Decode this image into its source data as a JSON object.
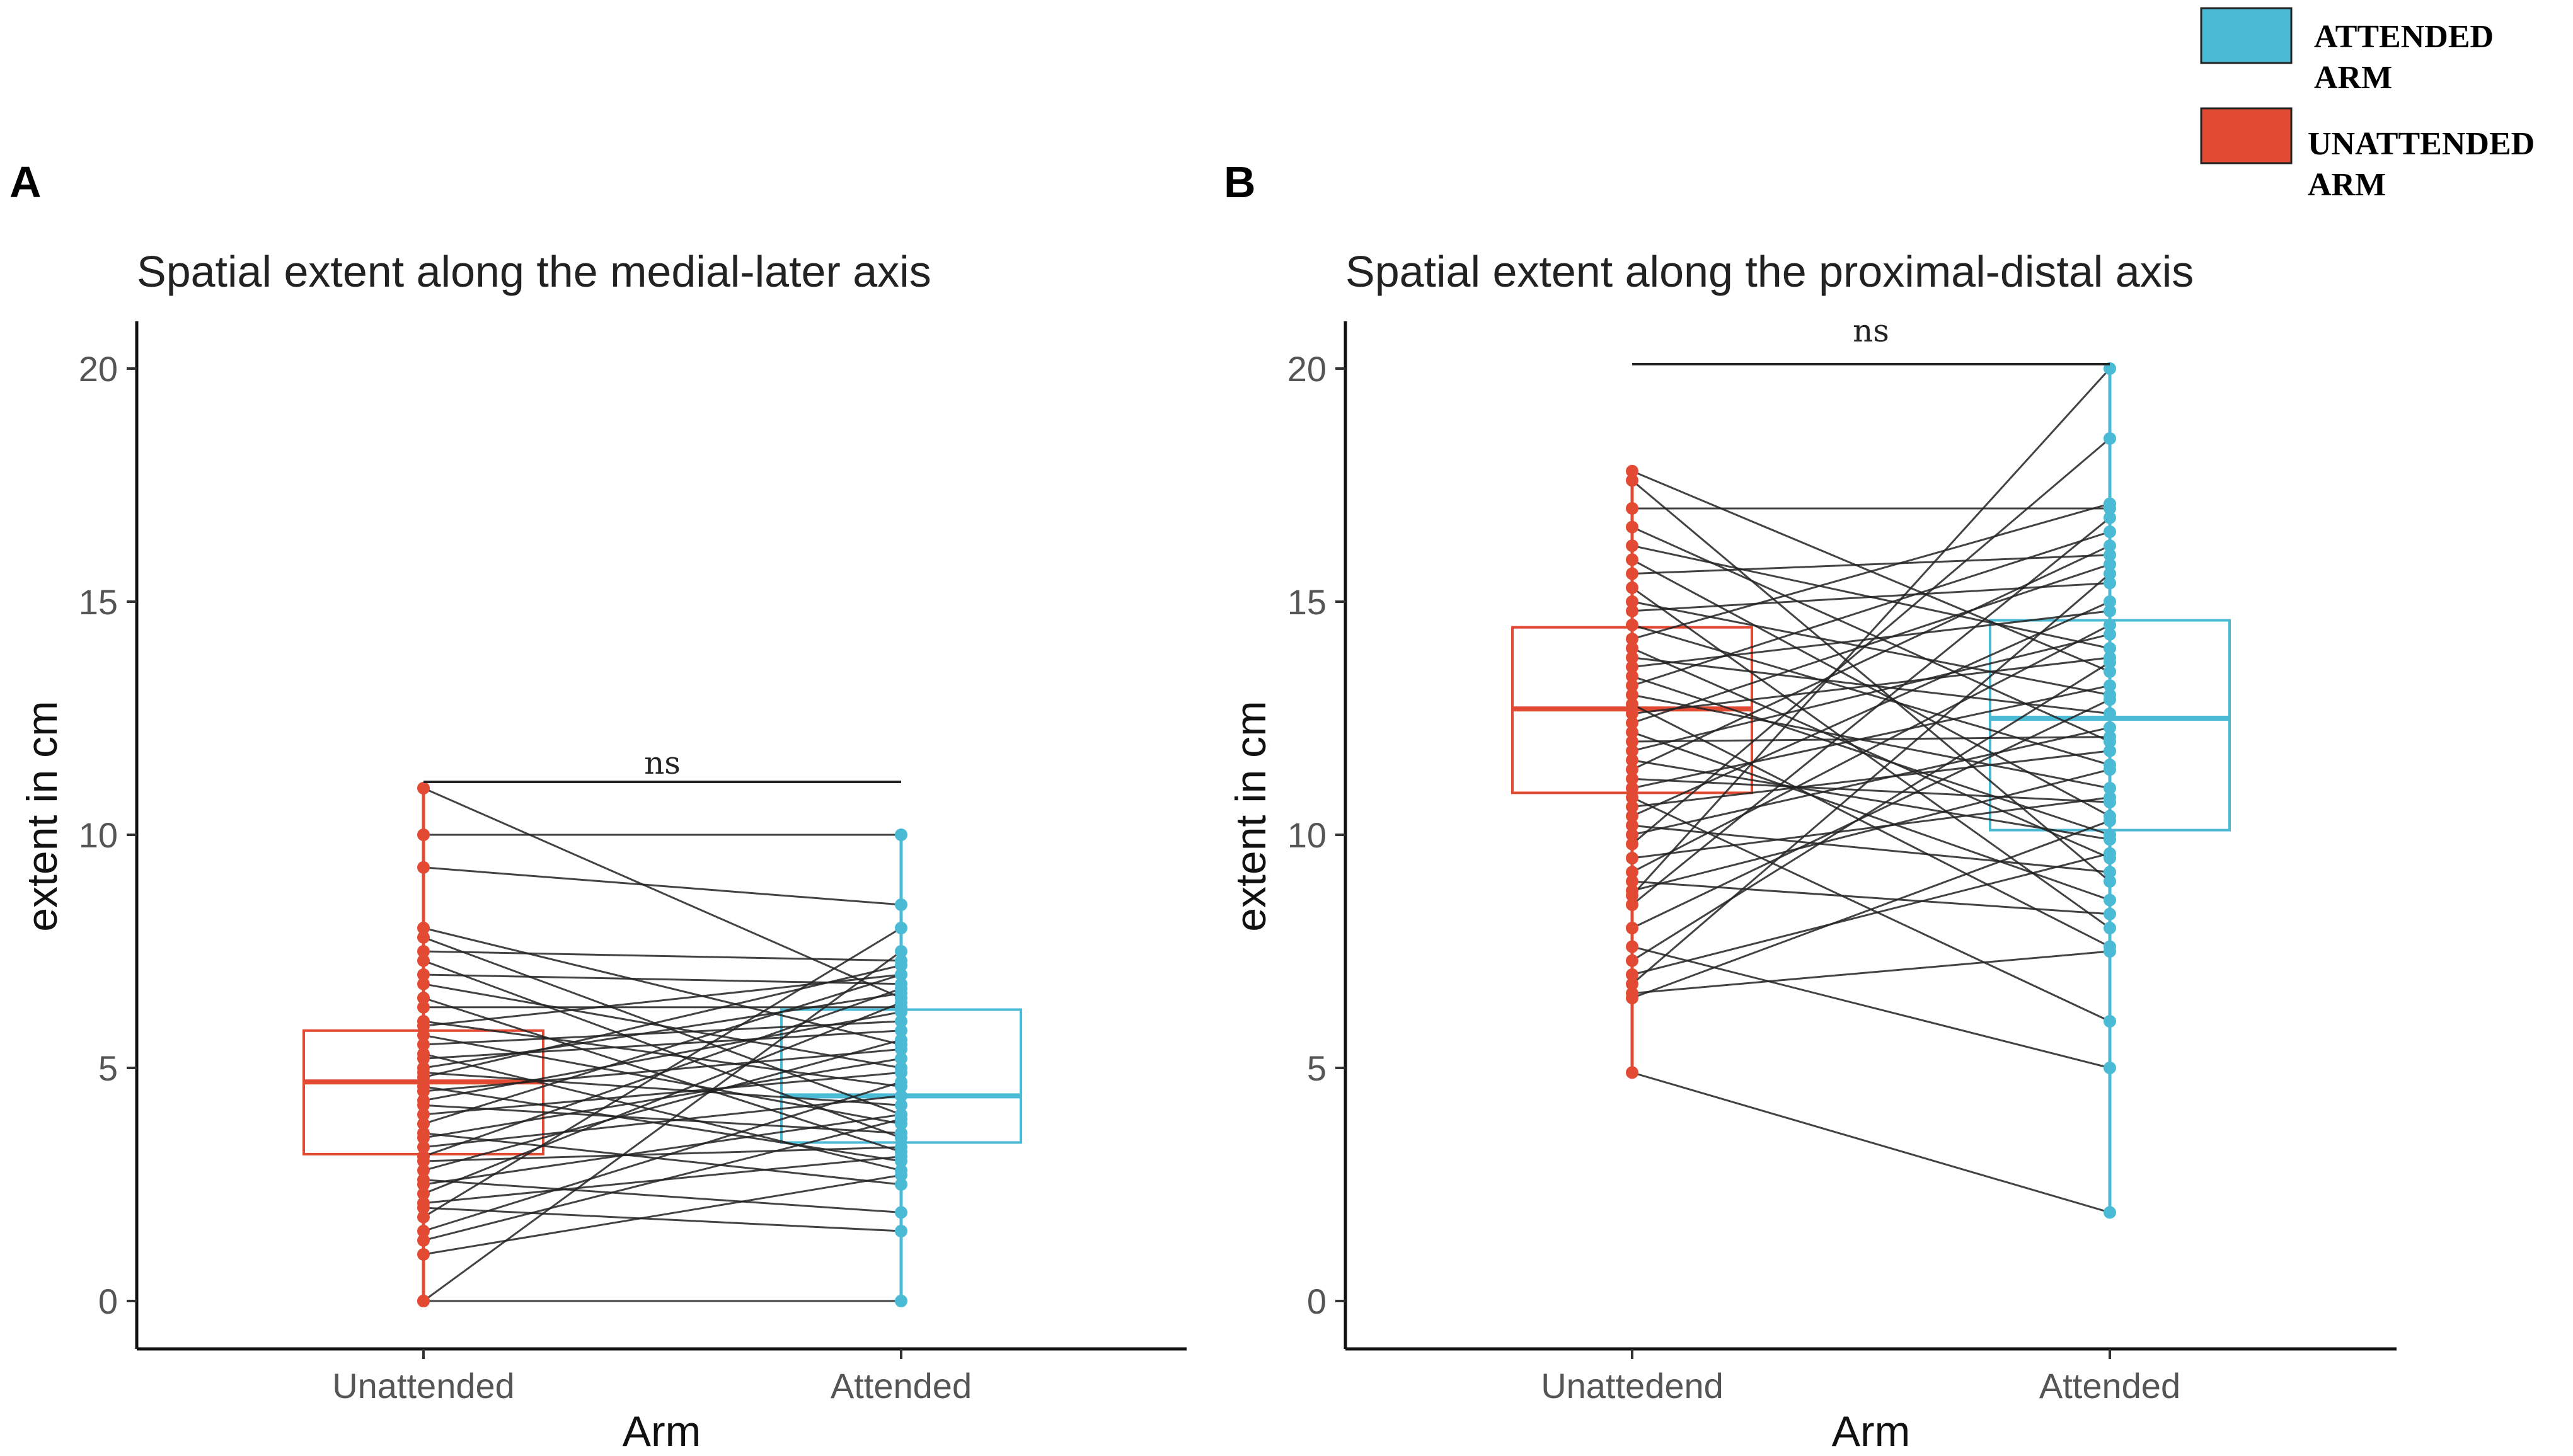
{
  "chart_data": [
    {
      "type": "box",
      "panel_label": "A",
      "title": "Spatial extent along the medial-later axis",
      "xlabel": "Arm",
      "ylabel": "extent in cm",
      "categories": [
        "Unattended",
        "Attended"
      ],
      "ylim": [
        0,
        20
      ],
      "yticks": [
        0,
        5,
        10,
        15,
        20
      ],
      "significance": "ns",
      "grid": false,
      "boxes": [
        {
          "group": "Unattended",
          "q1": 3.15,
          "median": 4.7,
          "q3": 5.8,
          "color": "#e24a33"
        },
        {
          "group": "Attended",
          "q1": 3.4,
          "median": 4.4,
          "q3": 6.25,
          "color": "#4bbad5"
        }
      ],
      "pairs": [
        [
          11.0,
          6.5
        ],
        [
          10.0,
          10.0
        ],
        [
          9.3,
          8.5
        ],
        [
          8.0,
          5.5
        ],
        [
          7.8,
          4.0
        ],
        [
          7.5,
          7.3
        ],
        [
          7.3,
          3.5
        ],
        [
          7.0,
          6.8
        ],
        [
          6.8,
          5.0
        ],
        [
          6.5,
          3.2
        ],
        [
          6.3,
          6.3
        ],
        [
          6.0,
          4.6
        ],
        [
          5.9,
          7.0
        ],
        [
          5.7,
          3.8
        ],
        [
          5.5,
          6.0
        ],
        [
          5.3,
          2.8
        ],
        [
          5.2,
          5.8
        ],
        [
          5.0,
          6.6
        ],
        [
          4.9,
          4.2
        ],
        [
          4.8,
          7.2
        ],
        [
          4.6,
          3.0
        ],
        [
          4.5,
          5.4
        ],
        [
          4.3,
          6.2
        ],
        [
          4.2,
          3.6
        ],
        [
          4.0,
          4.9
        ],
        [
          3.8,
          7.0
        ],
        [
          3.6,
          2.5
        ],
        [
          3.5,
          5.2
        ],
        [
          3.3,
          4.4
        ],
        [
          3.1,
          6.7
        ],
        [
          3.0,
          3.3
        ],
        [
          2.8,
          5.6
        ],
        [
          2.6,
          1.9
        ],
        [
          2.5,
          4.0
        ],
        [
          2.3,
          6.4
        ],
        [
          2.1,
          3.1
        ],
        [
          2.0,
          1.5
        ],
        [
          1.8,
          8.0
        ],
        [
          1.5,
          4.7
        ],
        [
          1.3,
          3.9
        ],
        [
          1.0,
          2.7
        ],
        [
          0.0,
          0.0
        ],
        [
          0.0,
          7.5
        ]
      ]
    },
    {
      "type": "box",
      "panel_label": "B",
      "title": "Spatial extent along the proximal-distal axis",
      "xlabel": "Arm",
      "ylabel": "extent in cm",
      "categories": [
        "Unattedend",
        "Attended"
      ],
      "ylim": [
        0,
        20
      ],
      "yticks": [
        0,
        5,
        10,
        15,
        20
      ],
      "significance": "ns",
      "grid": false,
      "boxes": [
        {
          "group": "Unattedend",
          "q1": 10.9,
          "median": 12.7,
          "q3": 14.45,
          "color": "#e24a33"
        },
        {
          "group": "Attended",
          "q1": 10.1,
          "median": 12.5,
          "q3": 14.6,
          "color": "#4bbad5"
        }
      ],
      "pairs": [
        [
          17.8,
          13.5
        ],
        [
          17.6,
          9.0
        ],
        [
          17.0,
          17.0
        ],
        [
          16.6,
          12.0
        ],
        [
          16.2,
          14.0
        ],
        [
          15.9,
          10.4
        ],
        [
          15.6,
          16.0
        ],
        [
          15.3,
          8.0
        ],
        [
          15.0,
          13.0
        ],
        [
          14.8,
          15.4
        ],
        [
          14.5,
          11.5
        ],
        [
          14.2,
          17.1
        ],
        [
          14.0,
          9.5
        ],
        [
          13.8,
          12.6
        ],
        [
          13.6,
          14.8
        ],
        [
          13.4,
          10.0
        ],
        [
          13.2,
          16.5
        ],
        [
          13.0,
          11.0
        ],
        [
          12.8,
          7.6
        ],
        [
          12.6,
          13.8
        ],
        [
          12.4,
          15.8
        ],
        [
          12.2,
          8.6
        ],
        [
          12.0,
          12.1
        ],
        [
          11.8,
          14.3
        ],
        [
          11.6,
          9.9
        ],
        [
          11.4,
          16.2
        ],
        [
          11.2,
          10.7
        ],
        [
          11.0,
          13.2
        ],
        [
          10.8,
          6.0
        ],
        [
          10.6,
          11.8
        ],
        [
          10.4,
          15.0
        ],
        [
          10.2,
          9.2
        ],
        [
          10.0,
          12.3
        ],
        [
          9.8,
          18.5
        ],
        [
          9.5,
          10.8
        ],
        [
          9.2,
          14.5
        ],
        [
          9.0,
          8.3
        ],
        [
          8.8,
          11.4
        ],
        [
          8.5,
          16.8
        ],
        [
          8.0,
          12.9
        ],
        [
          7.6,
          5.0
        ],
        [
          7.3,
          13.7
        ],
        [
          7.0,
          9.6
        ],
        [
          6.8,
          15.6
        ],
        [
          6.5,
          10.3
        ],
        [
          4.9,
          1.9
        ],
        [
          8.7,
          20.0
        ],
        [
          6.6,
          7.5
        ]
      ]
    }
  ],
  "legend": {
    "items": [
      {
        "label_line1": "ATTENDED",
        "label_line2": "ARM",
        "color": "#4bbad5"
      },
      {
        "label_line1": "UNATTENDED",
        "label_line2": "ARM",
        "color": "#e24a33"
      }
    ]
  }
}
